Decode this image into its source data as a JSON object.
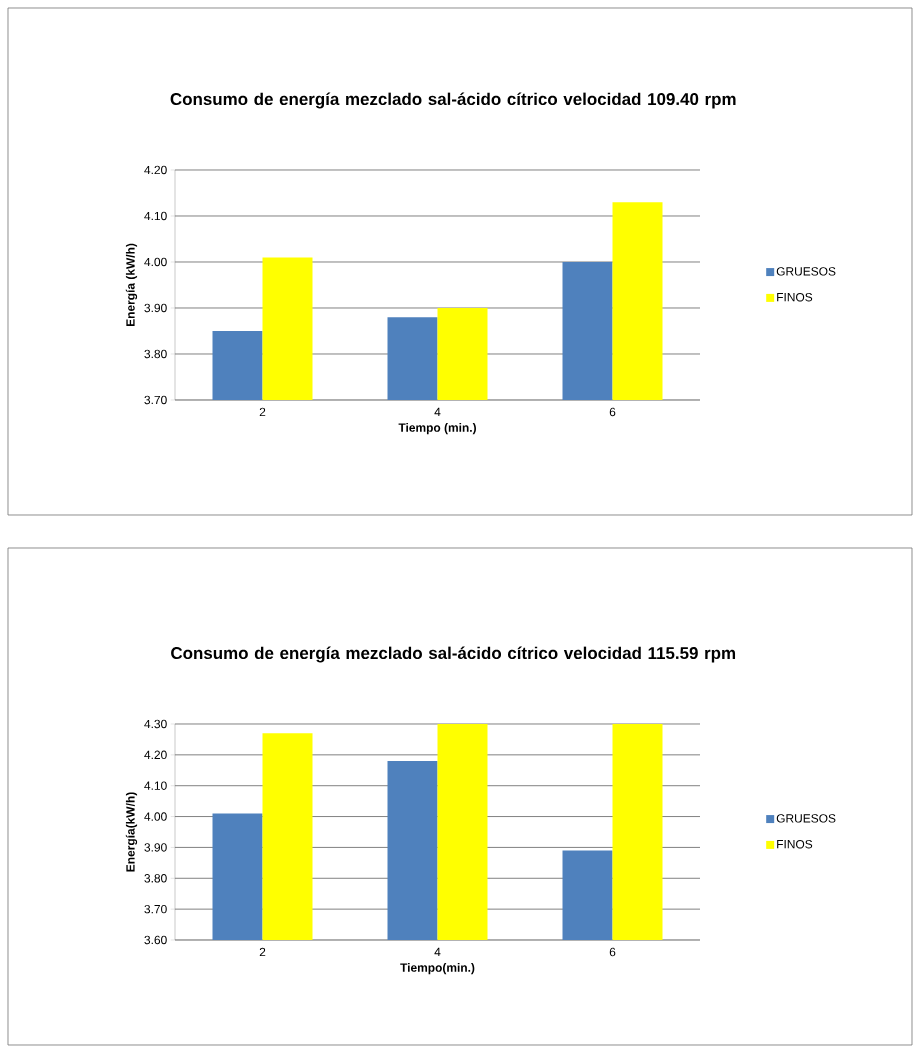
{
  "chart_data": [
    {
      "type": "bar",
      "title": "Consumo de energía mezclado sal-ácido cítrico velocidad 109.40 rpm",
      "xlabel": "Tiempo (min.)",
      "ylabel": "Energía (kW/h)",
      "categories": [
        "2",
        "4",
        "6"
      ],
      "series": [
        {
          "name": "GRUESOS",
          "color": "#4f81bd",
          "values": [
            3.85,
            3.88,
            4.0
          ]
        },
        {
          "name": "FINOS",
          "color": "#ffff00",
          "values": [
            4.01,
            3.9,
            4.13
          ]
        }
      ],
      "ylim": [
        3.7,
        4.2
      ],
      "yticks": [
        {
          "value": 3.7,
          "label": "3.70"
        },
        {
          "value": 3.8,
          "label": "3.80"
        },
        {
          "value": 3.9,
          "label": "3.90"
        },
        {
          "value": 4.0,
          "label": "4.00"
        },
        {
          "value": 4.1,
          "label": "4.10"
        },
        {
          "value": 4.2,
          "label": "4.20"
        }
      ],
      "grid": "y",
      "legend": "right"
    },
    {
      "type": "bar",
      "title": "Consumo de energía mezclado sal-ácido cítrico velocidad 115.59 rpm",
      "xlabel": "Tiempo(min.)",
      "ylabel": "Energía(kW/h)",
      "categories": [
        "2",
        "4",
        "6"
      ],
      "series": [
        {
          "name": "GRUESOS",
          "color": "#4f81bd",
          "values": [
            4.01,
            4.18,
            3.89
          ]
        },
        {
          "name": "FINOS",
          "color": "#ffff00",
          "values": [
            4.27,
            4.3,
            4.3
          ]
        }
      ],
      "ylim": [
        3.6,
        4.3
      ],
      "yticks": [
        {
          "value": 3.6,
          "label": "3.60"
        },
        {
          "value": 3.7,
          "label": "3.70"
        },
        {
          "value": 3.8,
          "label": "3.80"
        },
        {
          "value": 3.9,
          "label": "3.90"
        },
        {
          "value": 4.0,
          "label": "4.00"
        },
        {
          "value": 4.1,
          "label": "4.10"
        },
        {
          "value": 4.2,
          "label": "4.20"
        },
        {
          "value": 4.3,
          "label": "4.30"
        }
      ],
      "grid": "y",
      "legend": "right"
    }
  ]
}
